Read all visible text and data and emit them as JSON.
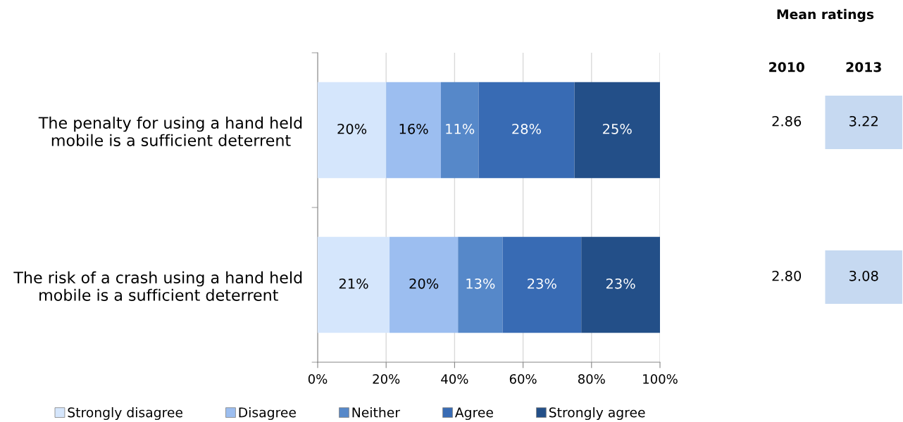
{
  "chart_data": [
    {
      "type": "bar",
      "orientation": "horizontal",
      "stacked": true,
      "categories": [
        "The penalty for using a hand held mobile is a sufficient deterrent",
        "The risk of a crash using a hand held mobile is a sufficient deterrent"
      ],
      "series": [
        {
          "name": "Strongly disagree",
          "color": "#d5e6fc",
          "values": [
            20,
            21
          ],
          "value_labels": [
            "20%",
            "21%"
          ]
        },
        {
          "name": "Disagree",
          "color": "#9cbef0",
          "values": [
            16,
            20
          ],
          "value_labels": [
            "16%",
            "20%"
          ]
        },
        {
          "name": "Neither",
          "color": "#5688c9",
          "values": [
            11,
            13
          ],
          "value_labels": [
            "11%",
            "13%"
          ]
        },
        {
          "name": "Agree",
          "color": "#386bb4",
          "values": [
            28,
            23
          ],
          "value_labels": [
            "28%",
            "23%"
          ]
        },
        {
          "name": "Strongly agree",
          "color": "#234f88",
          "values": [
            25,
            23
          ],
          "value_labels": [
            "25%",
            "23%"
          ]
        }
      ],
      "xlim": [
        0,
        100
      ],
      "xticks": [
        {
          "value": 0,
          "label": "0%"
        },
        {
          "value": 20,
          "label": "20%"
        },
        {
          "value": 40,
          "label": "40%"
        },
        {
          "value": 60,
          "label": "60%"
        },
        {
          "value": 80,
          "label": "80%"
        },
        {
          "value": 100,
          "label": "100%"
        }
      ],
      "grid": "x",
      "legend": "bottom"
    },
    {
      "type": "other",
      "title": "Mean ratings",
      "categories": [
        "2010",
        "2013"
      ],
      "colors": [
        null,
        "#c6d9f1"
      ],
      "annotations": [
        "2.86",
        "3.22",
        "2.80",
        "3.08"
      ]
    }
  ]
}
